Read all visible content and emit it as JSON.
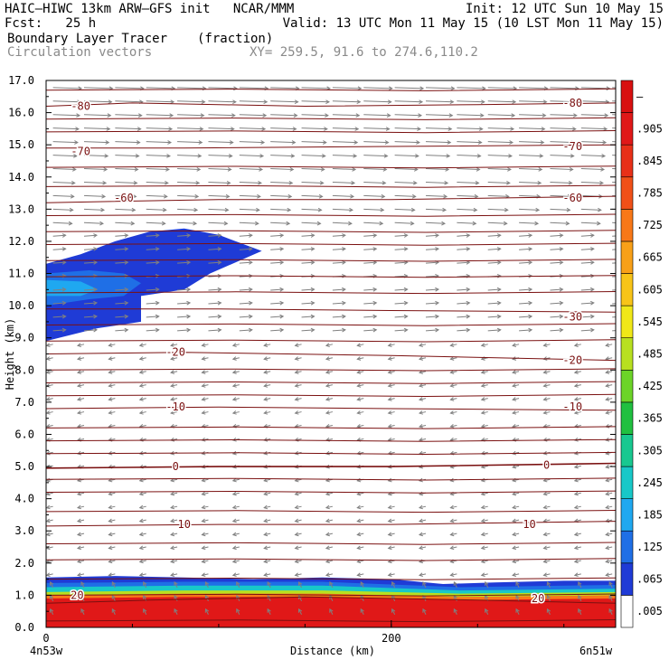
{
  "header": {
    "line1_left": "HAIC–HIWC 13km ARW–GFS init   NCAR/MMM",
    "line1_right": "Init: 12 UTC Sun 10 May 15",
    "line2_left": "Fcst:   25 h",
    "line2_right": "Valid: 13 UTC Mon 11 May 15 (10 LST Mon 11 May 15)",
    "field_name": "Boundary Layer Tracer",
    "field_units": "(fraction)",
    "vectors_label": "Circulation vectors",
    "xy_label": "XY= 259.5, 91.6 to 274.6,110.2"
  },
  "colors": {
    "isotherm": "#7a1010",
    "vector": "#808080",
    "frame": "#000000"
  },
  "chart_data": {
    "type": "heatmap",
    "xlabel": "Distance (km)",
    "ylabel": "Height (km)",
    "xlim": [
      0,
      330
    ],
    "ylim": [
      0,
      17
    ],
    "x_ticks": [
      0,
      200
    ],
    "x_tick_labels": [
      "0",
      "200"
    ],
    "x_end_labels": [
      "4n53w",
      "6n51w"
    ],
    "y_ticks": [
      0,
      1,
      2,
      3,
      4,
      5,
      6,
      7,
      8,
      9,
      10,
      11,
      12,
      13,
      14,
      15,
      16,
      17
    ],
    "y_tick_labels": [
      "0.0",
      "1.0",
      "2.0",
      "3.0",
      "4.0",
      "5.0",
      "6.0",
      "7.0",
      "8.0",
      "9.0",
      "10.0",
      "11.0",
      "12.0",
      "13.0",
      "14.0",
      "15.0",
      "16.0",
      "17.0"
    ],
    "colorbar": {
      "labels": [
        ".005",
        ".065",
        ".125",
        ".185",
        ".245",
        ".305",
        ".365",
        ".425",
        ".485",
        ".545",
        ".605",
        ".665",
        ".725",
        ".785",
        ".845",
        ".905",
        "–"
      ],
      "colors": [
        "#ffffff",
        "#1f3bd6",
        "#1f6fe6",
        "#1fa8f0",
        "#18c8c8",
        "#18c890",
        "#20c040",
        "#6cd428",
        "#b8e020",
        "#f0e818",
        "#f8c418",
        "#f8a018",
        "#f87818",
        "#f05018",
        "#e83018",
        "#e01818",
        "#d81010"
      ]
    },
    "tracer_boundary_layer": {
      "top_km": [
        [
          0,
          1.55
        ],
        [
          40,
          1.6
        ],
        [
          80,
          1.55
        ],
        [
          120,
          1.5
        ],
        [
          160,
          1.55
        ],
        [
          200,
          1.5
        ],
        [
          230,
          1.35
        ],
        [
          260,
          1.4
        ],
        [
          300,
          1.45
        ],
        [
          330,
          1.45
        ]
      ],
      "bands": [
        {
          "value": 0.905,
          "top_km": [
            [
              0,
              0.9
            ],
            [
              80,
              0.95
            ],
            [
              160,
              0.95
            ],
            [
              240,
              0.85
            ],
            [
              330,
              0.9
            ]
          ]
        },
        {
          "value": 0.725,
          "top_km": [
            [
              0,
              1.0
            ],
            [
              80,
              1.05
            ],
            [
              160,
              1.05
            ],
            [
              240,
              0.95
            ],
            [
              330,
              1.0
            ]
          ]
        },
        {
          "value": 0.485,
          "top_km": [
            [
              0,
              1.1
            ],
            [
              80,
              1.15
            ],
            [
              160,
              1.15
            ],
            [
              240,
              1.05
            ],
            [
              330,
              1.1
            ]
          ]
        },
        {
          "value": 0.245,
          "top_km": [
            [
              0,
              1.25
            ],
            [
              80,
              1.3
            ],
            [
              160,
              1.3
            ],
            [
              240,
              1.15
            ],
            [
              330,
              1.2
            ]
          ]
        },
        {
          "value": 0.125,
          "top_km": [
            [
              0,
              1.38
            ],
            [
              80,
              1.42
            ],
            [
              160,
              1.42
            ],
            [
              240,
              1.25
            ],
            [
              330,
              1.32
            ]
          ]
        }
      ]
    },
    "tracer_anvil": {
      "outer": [
        [
          0,
          11.3
        ],
        [
          20,
          11.6
        ],
        [
          40,
          12.0
        ],
        [
          60,
          12.3
        ],
        [
          80,
          12.4
        ],
        [
          100,
          12.2
        ],
        [
          125,
          11.7
        ],
        [
          95,
          11.0
        ],
        [
          80,
          10.5
        ],
        [
          55,
          10.3
        ],
        [
          55,
          9.5
        ],
        [
          30,
          9.3
        ],
        [
          0,
          8.9
        ]
      ],
      "inner": [
        [
          0,
          11.0
        ],
        [
          25,
          11.1
        ],
        [
          45,
          11.0
        ],
        [
          55,
          10.7
        ],
        [
          45,
          10.3
        ],
        [
          25,
          10.2
        ],
        [
          0,
          10.0
        ]
      ],
      "core": [
        [
          0,
          10.8
        ],
        [
          20,
          10.75
        ],
        [
          30,
          10.5
        ],
        [
          20,
          10.3
        ],
        [
          0,
          10.3
        ]
      ]
    },
    "isotherms": [
      {
        "label": "-80",
        "points": [
          [
            0,
            16.2
          ],
          [
            50,
            16.3
          ],
          [
            150,
            16.2
          ],
          [
            250,
            16.25
          ],
          [
            330,
            16.3
          ]
        ],
        "label_positions": [
          [
            20,
            16.2
          ],
          [
            305,
            16.3
          ]
        ]
      },
      {
        "label": "-70",
        "points": [
          [
            0,
            14.9
          ],
          [
            80,
            14.9
          ],
          [
            200,
            14.95
          ],
          [
            330,
            15.0
          ]
        ],
        "label_positions": [
          [
            20,
            14.8
          ],
          [
            305,
            14.95
          ]
        ]
      },
      {
        "label": "-60",
        "points": [
          [
            0,
            13.2
          ],
          [
            100,
            13.3
          ],
          [
            200,
            13.3
          ],
          [
            330,
            13.4
          ]
        ],
        "label_positions": [
          [
            45,
            13.35
          ],
          [
            305,
            13.35
          ]
        ]
      },
      {
        "label": "-30",
        "points": [
          [
            0,
            9.9
          ],
          [
            100,
            9.9
          ],
          [
            200,
            9.85
          ],
          [
            330,
            9.8
          ]
        ],
        "label_positions": [
          [
            305,
            9.65
          ]
        ]
      },
      {
        "label": "-20",
        "points": [
          [
            0,
            8.5
          ],
          [
            80,
            8.55
          ],
          [
            200,
            8.45
          ],
          [
            330,
            8.3
          ]
        ],
        "label_positions": [
          [
            75,
            8.55
          ],
          [
            305,
            8.3
          ]
        ]
      },
      {
        "label": "-10",
        "points": [
          [
            0,
            6.8
          ],
          [
            100,
            6.85
          ],
          [
            200,
            6.8
          ],
          [
            330,
            6.75
          ]
        ],
        "label_positions": [
          [
            75,
            6.85
          ],
          [
            305,
            6.85
          ]
        ]
      },
      {
        "label": "0",
        "points": [
          [
            0,
            4.95
          ],
          [
            100,
            5.0
          ],
          [
            200,
            5.0
          ],
          [
            330,
            5.1
          ]
        ],
        "label_positions": [
          [
            75,
            5.0
          ],
          [
            290,
            5.05
          ]
        ]
      },
      {
        "label": "10",
        "points": [
          [
            0,
            3.15
          ],
          [
            100,
            3.2
          ],
          [
            200,
            3.2
          ],
          [
            330,
            3.3
          ]
        ],
        "label_positions": [
          [
            80,
            3.2
          ],
          [
            280,
            3.2
          ]
        ]
      },
      {
        "label": "20",
        "points": [
          [
            0,
            0.75
          ],
          [
            60,
            0.85
          ],
          [
            150,
            0.95
          ],
          [
            250,
            0.85
          ],
          [
            330,
            0.75
          ]
        ],
        "label_positions": [
          [
            18,
            1.0
          ],
          [
            285,
            0.9
          ]
        ]
      }
    ],
    "isotherm_levels_unlabeled_km": [
      0.2,
      1.0,
      1.5,
      2.1,
      2.6,
      3.6,
      4.2,
      4.6,
      5.4,
      5.8,
      6.2,
      7.2,
      7.6,
      8.0,
      8.9,
      9.4,
      10.4,
      10.9,
      11.4,
      11.9,
      12.3,
      12.8,
      13.7,
      14.3,
      15.4,
      15.8,
      16.7
    ]
  }
}
